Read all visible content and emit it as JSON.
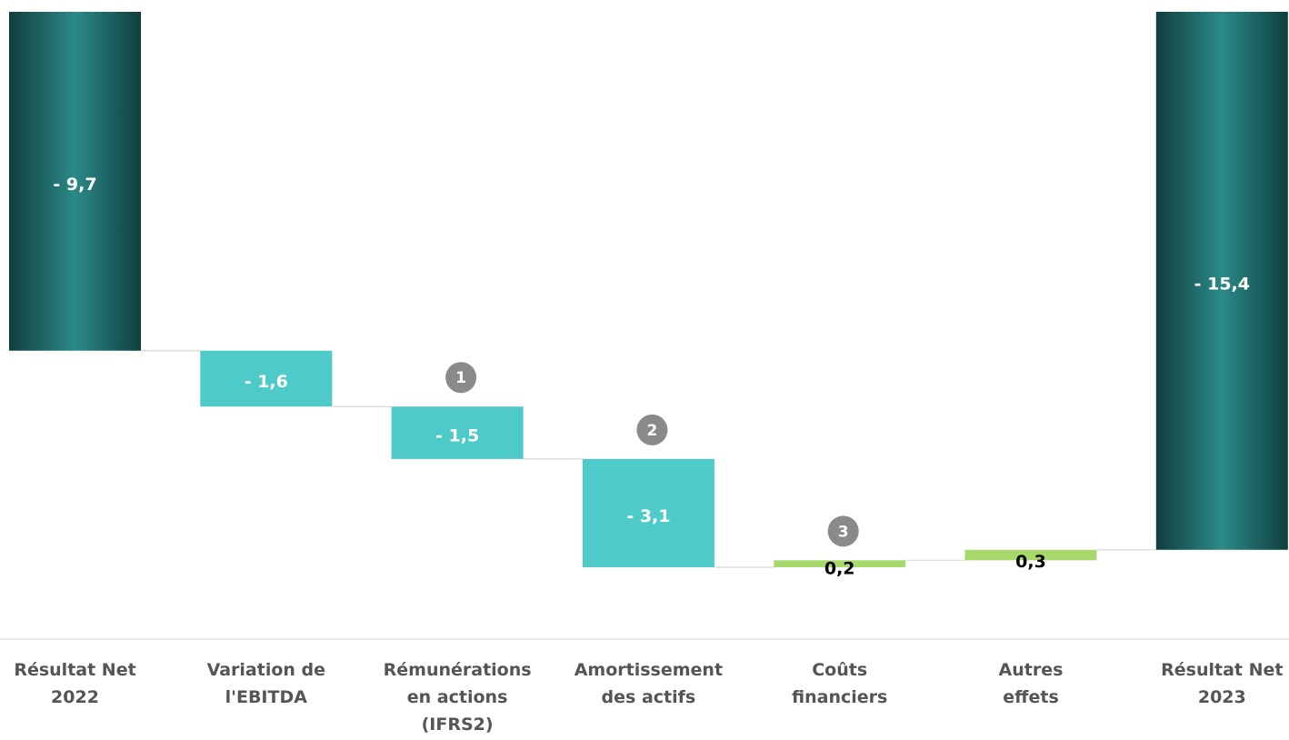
{
  "chart_data": {
    "type": "waterfall",
    "categories": [
      "Résultat Net\n2022",
      "Variation de\nl'EBITDA",
      "Rémunérations\nen actions\n(IFRS2)",
      "Amortissement\ndes actifs",
      "Coûts\nfinanciers",
      "Autres\neffets",
      "Résultat Net\n2023"
    ],
    "values": [
      -9.7,
      -1.6,
      -1.5,
      -3.1,
      0.2,
      0.3,
      -15.4
    ],
    "value_labels": [
      "- 9,7",
      "- 1,6",
      "- 1,5",
      "- 3,1",
      "0,2",
      "0,3",
      "- 15,4"
    ],
    "is_total": [
      true,
      false,
      false,
      false,
      false,
      false,
      true
    ],
    "annotations": [
      null,
      null,
      "1",
      "2",
      "3",
      null,
      null
    ],
    "colors": {
      "total": "#1e6b6a",
      "negative": "#4ecac8",
      "positive": "#a6d86c"
    }
  }
}
